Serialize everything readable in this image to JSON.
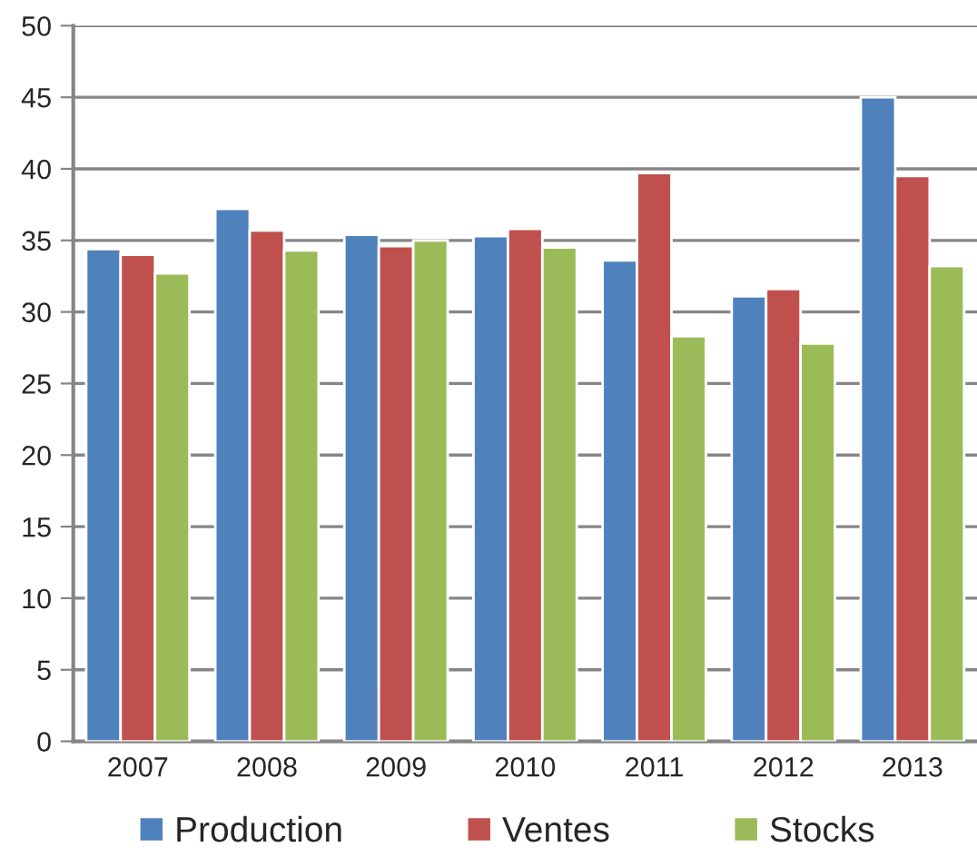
{
  "chart_data": {
    "type": "bar",
    "categories": [
      "2007",
      "2008",
      "2009",
      "2010",
      "2011",
      "2012",
      "2013"
    ],
    "series": [
      {
        "name": "Production",
        "color": "#4f81bd",
        "values": [
          34.4,
          37.2,
          35.4,
          35.3,
          33.6,
          31.1,
          45.0
        ]
      },
      {
        "name": "Ventes",
        "color": "#c0504d",
        "values": [
          34.0,
          35.7,
          34.6,
          35.8,
          39.7,
          31.6,
          39.5
        ]
      },
      {
        "name": "Stocks",
        "color": "#9bbb59",
        "values": [
          32.7,
          34.3,
          35.0,
          34.5,
          28.3,
          27.8,
          33.2
        ]
      }
    ],
    "ylim": [
      0,
      50
    ],
    "yticks": [
      0,
      5,
      10,
      15,
      20,
      25,
      30,
      35,
      40,
      45,
      50
    ],
    "grid": "y",
    "legend": "bottom"
  }
}
